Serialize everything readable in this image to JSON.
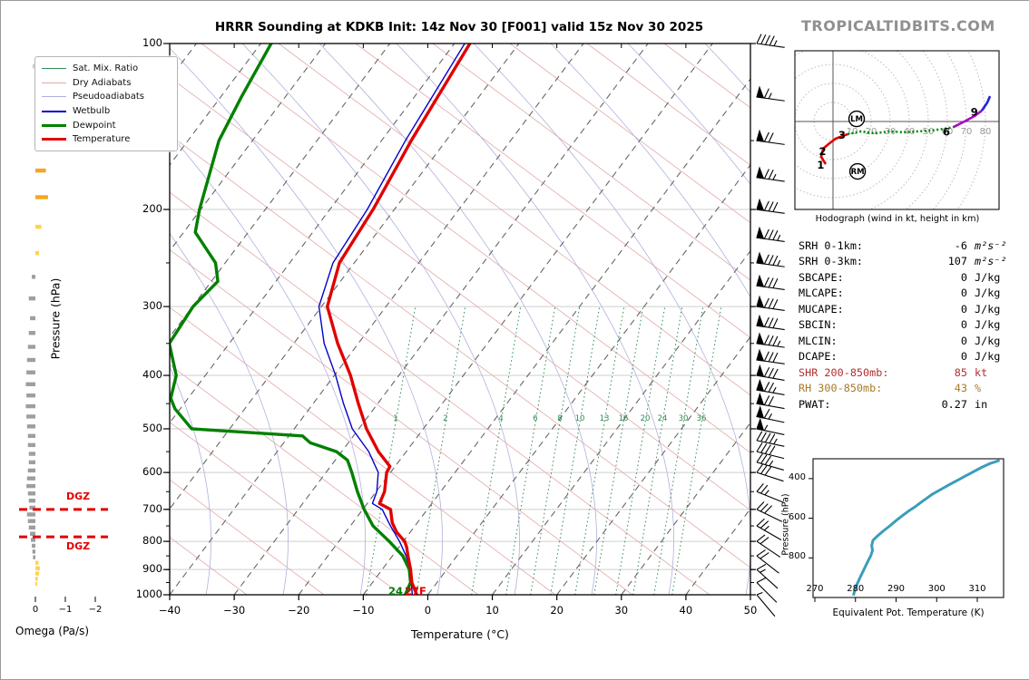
{
  "title": "HRRR Sounding at KDKB Init: 14z Nov 30 [F001] valid 15z Nov 30 2025",
  "brand": "TROPICALTIDBITS.COM",
  "legend": {
    "items": [
      {
        "label": "Sat. Mix. Ratio",
        "style": "mixratio"
      },
      {
        "label": "Dry Adiabats",
        "style": "dry"
      },
      {
        "label": "Pseudoadiabats",
        "style": "pseudo"
      },
      {
        "label": "Wetbulb",
        "style": "wetbulb"
      },
      {
        "label": "Dewpoint",
        "style": "dewpoint"
      },
      {
        "label": "Temperature",
        "style": "temperature"
      }
    ]
  },
  "indices": {
    "rows": [
      {
        "label": "SRH 0-1km:",
        "value": "-6",
        "unit": "m²s⁻²",
        "math": true,
        "color": "#000000"
      },
      {
        "label": "SRH 0-3km:",
        "value": "107",
        "unit": "m²s⁻²",
        "math": true,
        "color": "#000000"
      },
      {
        "label": "SBCAPE:",
        "value": "0",
        "unit": "J/kg",
        "math": false,
        "color": "#000000"
      },
      {
        "label": "MLCAPE:",
        "value": "0",
        "unit": "J/kg",
        "math": false,
        "color": "#000000"
      },
      {
        "label": "MUCAPE:",
        "value": "0",
        "unit": "J/kg",
        "math": false,
        "color": "#000000"
      },
      {
        "label": "SBCIN:",
        "value": "0",
        "unit": "J/kg",
        "math": false,
        "color": "#000000"
      },
      {
        "label": "MLCIN:",
        "value": "0",
        "unit": "J/kg",
        "math": false,
        "color": "#000000"
      },
      {
        "label": "DCAPE:",
        "value": "0",
        "unit": "J/kg",
        "math": false,
        "color": "#000000"
      },
      {
        "label": "SHR 200-850mb:",
        "value": "85",
        "unit": "kt",
        "math": false,
        "color": "#b03030"
      },
      {
        "label": "RH 300-850mb:",
        "value": "43",
        "unit": "%",
        "math": false,
        "color": "#a87a28"
      },
      {
        "label": "PWAT:",
        "value": "0.27",
        "unit": "in",
        "math": false,
        "color": "#000000"
      }
    ]
  },
  "chart_data": {
    "type": "skew-t log-p sounding",
    "skewt": {
      "xlabel": "Temperature (°C)",
      "ylabel": "Pressure (hPa)",
      "x_ticks": [
        -40,
        -30,
        -20,
        -10,
        0,
        10,
        20,
        30,
        40,
        50
      ],
      "xlim": [
        -40,
        50
      ],
      "p_ticks": [
        100,
        200,
        300,
        400,
        500,
        600,
        700,
        800,
        900,
        1000
      ],
      "plim": [
        100,
        1000
      ],
      "surface_temp_label": "27F",
      "surface_dewp_label": "24",
      "mixing_ratio_labels": [
        [
          1,
          435
        ],
        [
          2,
          490
        ],
        [
          4,
          551
        ],
        [
          6,
          589
        ],
        [
          8,
          616
        ],
        [
          10,
          638
        ],
        [
          13,
          665
        ],
        [
          16,
          686
        ],
        [
          20,
          710
        ],
        [
          24,
          729
        ],
        [
          30,
          752
        ],
        [
          36,
          772
        ]
      ],
      "dgz": {
        "label": "DGZ",
        "levels_hpa": [
          700,
          785
        ]
      },
      "temperature_c": [
        [
          1000,
          -1.7
        ],
        [
          950,
          -3.9
        ],
        [
          900,
          -5.6
        ],
        [
          850,
          -7.6
        ],
        [
          820,
          -8.8
        ],
        [
          800,
          -9.8
        ],
        [
          770,
          -12.1
        ],
        [
          740,
          -13.9
        ],
        [
          700,
          -15.7
        ],
        [
          683,
          -18.1
        ],
        [
          650,
          -18.7
        ],
        [
          600,
          -20.6
        ],
        [
          585,
          -20.8
        ],
        [
          550,
          -24.3
        ],
        [
          500,
          -28.8
        ],
        [
          450,
          -33.0
        ],
        [
          400,
          -37.5
        ],
        [
          350,
          -43.2
        ],
        [
          300,
          -49.1
        ],
        [
          250,
          -52.3
        ],
        [
          200,
          -53.3
        ],
        [
          150,
          -55.4
        ],
        [
          100,
          -57.6
        ]
      ],
      "dewpoint_c": [
        [
          1000,
          -3.5
        ],
        [
          950,
          -4.1
        ],
        [
          900,
          -5.8
        ],
        [
          850,
          -8.4
        ],
        [
          800,
          -12.2
        ],
        [
          750,
          -16.5
        ],
        [
          700,
          -19.8
        ],
        [
          650,
          -22.9
        ],
        [
          600,
          -26.0
        ],
        [
          570,
          -28.1
        ],
        [
          550,
          -30.8
        ],
        [
          530,
          -35.9
        ],
        [
          515,
          -37.9
        ],
        [
          500,
          -55.9
        ],
        [
          460,
          -60.8
        ],
        [
          440,
          -62.7
        ],
        [
          400,
          -64.5
        ],
        [
          350,
          -69.3
        ],
        [
          300,
          -69.9
        ],
        [
          270,
          -69.0
        ],
        [
          250,
          -71.5
        ],
        [
          220,
          -78.2
        ],
        [
          200,
          -80.2
        ],
        [
          150,
          -85.2
        ],
        [
          125,
          -86.8
        ],
        [
          100,
          -88.4
        ]
      ],
      "wetbulb_c": [
        [
          1000,
          -2.4
        ],
        [
          950,
          -4.0
        ],
        [
          900,
          -5.7
        ],
        [
          850,
          -7.9
        ],
        [
          800,
          -10.6
        ],
        [
          750,
          -13.8
        ],
        [
          700,
          -17.0
        ],
        [
          683,
          -19.2
        ],
        [
          650,
          -19.9
        ],
        [
          600,
          -21.9
        ],
        [
          550,
          -25.8
        ],
        [
          500,
          -31.0
        ],
        [
          450,
          -35.3
        ],
        [
          400,
          -39.8
        ],
        [
          350,
          -45.3
        ],
        [
          300,
          -50.4
        ],
        [
          250,
          -53.3
        ],
        [
          200,
          -54.2
        ],
        [
          150,
          -56.3
        ],
        [
          100,
          -58.4
        ]
      ]
    },
    "omega": {
      "label": "Omega (Pa/s)",
      "ticks": [
        0,
        -1,
        -2
      ],
      "profile": [
        [
          110,
          0.08
        ],
        [
          150,
          -0.18
        ],
        [
          170,
          -0.35
        ],
        [
          190,
          -0.42
        ],
        [
          215,
          -0.2
        ],
        [
          240,
          -0.12
        ],
        [
          265,
          0.12
        ],
        [
          290,
          0.22
        ],
        [
          315,
          0.18
        ],
        [
          335,
          0.22
        ],
        [
          355,
          0.25
        ],
        [
          375,
          0.28
        ],
        [
          395,
          0.3
        ],
        [
          415,
          0.32
        ],
        [
          435,
          0.3
        ],
        [
          455,
          0.32
        ],
        [
          475,
          0.3
        ],
        [
          495,
          0.28
        ],
        [
          515,
          0.25
        ],
        [
          535,
          0.25
        ],
        [
          555,
          0.22
        ],
        [
          575,
          0.22
        ],
        [
          595,
          0.25
        ],
        [
          615,
          0.28
        ],
        [
          635,
          0.3
        ],
        [
          655,
          0.25
        ],
        [
          675,
          0.22
        ],
        [
          695,
          0.2
        ],
        [
          715,
          0.28
        ],
        [
          735,
          0.25
        ],
        [
          755,
          0.22
        ],
        [
          775,
          0.18
        ],
        [
          795,
          0.15
        ],
        [
          815,
          0.12
        ],
        [
          835,
          0.1
        ],
        [
          855,
          0.08
        ],
        [
          875,
          -0.1
        ],
        [
          895,
          -0.15
        ],
        [
          915,
          -0.12
        ],
        [
          935,
          -0.08
        ],
        [
          955,
          -0.05
        ]
      ]
    },
    "wind_barbs_kt": [
      [
        100,
        0,
        4,
        1,
        8
      ],
      [
        125,
        1,
        1,
        1,
        8
      ],
      [
        150,
        1,
        2,
        0,
        8
      ],
      [
        175,
        1,
        2,
        1,
        8
      ],
      [
        200,
        1,
        3,
        0,
        8
      ],
      [
        225,
        1,
        3,
        1,
        8
      ],
      [
        250,
        1,
        3,
        1,
        8
      ],
      [
        275,
        1,
        3,
        0,
        8
      ],
      [
        300,
        1,
        3,
        0,
        8
      ],
      [
        325,
        1,
        3,
        0,
        8
      ],
      [
        350,
        1,
        3,
        1,
        8
      ],
      [
        375,
        1,
        3,
        0,
        8
      ],
      [
        400,
        1,
        3,
        0,
        10
      ],
      [
        425,
        1,
        2,
        1,
        10
      ],
      [
        450,
        1,
        2,
        0,
        10
      ],
      [
        475,
        1,
        1,
        1,
        12
      ],
      [
        500,
        1,
        0,
        1,
        12
      ],
      [
        525,
        0,
        4,
        1,
        12
      ],
      [
        550,
        0,
        4,
        0,
        14
      ],
      [
        575,
        0,
        3,
        1,
        16
      ],
      [
        600,
        0,
        3,
        0,
        18
      ],
      [
        650,
        0,
        2,
        1,
        22
      ],
      [
        700,
        0,
        3,
        0,
        26
      ],
      [
        750,
        0,
        2,
        1,
        30
      ],
      [
        800,
        0,
        2,
        0,
        34
      ],
      [
        850,
        0,
        2,
        0,
        38
      ],
      [
        900,
        0,
        1,
        1,
        42
      ],
      [
        950,
        0,
        1,
        0,
        45
      ],
      [
        1000,
        0,
        0,
        1,
        50
      ]
    ],
    "hodograph": {
      "caption": "Hodograph (wind in kt, height in km)",
      "ring_step_kt": 10,
      "ring_labels": [
        10,
        20,
        30,
        40,
        50,
        60,
        70,
        80
      ],
      "markers": [
        {
          "label": "LM",
          "u": 12.4,
          "v": 1.4
        },
        {
          "label": "RM",
          "u": 12.9,
          "v": -26.2
        }
      ],
      "height_labels": [
        {
          "t": "1",
          "u": -6.5,
          "v": -24.8
        },
        {
          "t": "2",
          "u": -5.5,
          "v": -17.6
        },
        {
          "t": "3",
          "u": 4.7,
          "v": -9.1
        },
        {
          "t": "6",
          "u": 59.5,
          "v": -7.4
        },
        {
          "t": "9",
          "u": 74.2,
          "v": 3.2
        }
      ],
      "trace": {
        "red": [
          [
            -3.8,
            -22.4
          ],
          [
            -6.2,
            -18.6
          ],
          [
            -5.2,
            -14.3
          ],
          [
            -2.4,
            -11.9
          ],
          [
            1.4,
            -9.0
          ],
          [
            7.6,
            -6.7
          ]
        ],
        "green": [
          [
            7.6,
            -6.7
          ],
          [
            14.8,
            -5.2
          ],
          [
            21.9,
            -6.2
          ],
          [
            30.0,
            -5.2
          ],
          [
            37.1,
            -5.7
          ],
          [
            44.3,
            -5.2
          ],
          [
            51.4,
            -4.8
          ],
          [
            58.6,
            -3.8
          ],
          [
            63.3,
            -2.9
          ]
        ],
        "purple": [
          [
            63.3,
            -2.9
          ],
          [
            69.0,
            0.0
          ],
          [
            74.3,
            2.9
          ],
          [
            78.1,
            5.7
          ]
        ],
        "blue": [
          [
            78.1,
            5.7
          ],
          [
            81.0,
            10.0
          ],
          [
            82.4,
            13.3
          ]
        ]
      }
    },
    "theta_e": {
      "caption": "Equivalent Pot. Temperature (K)",
      "ylabel": "Pressure (hPa)",
      "x_ticks": [
        270,
        280,
        290,
        300,
        310
      ],
      "p_ticks": [
        400,
        600,
        800
      ],
      "curve_k_hpa": [
        [
          279.5,
          990
        ],
        [
          280,
          950
        ],
        [
          281,
          905
        ],
        [
          282,
          862
        ],
        [
          283,
          820
        ],
        [
          283.8,
          788
        ],
        [
          284.2,
          762
        ],
        [
          284.0,
          738
        ],
        [
          284.3,
          712
        ],
        [
          285.5,
          688
        ],
        [
          287,
          662
        ],
        [
          288.5,
          638
        ],
        [
          290,
          612
        ],
        [
          291.5,
          588
        ],
        [
          293,
          565
        ],
        [
          294.5,
          545
        ],
        [
          296,
          522
        ],
        [
          297.5,
          500
        ],
        [
          299,
          478
        ],
        [
          301,
          455
        ],
        [
          303,
          432
        ],
        [
          305,
          410
        ],
        [
          307,
          388
        ],
        [
          309,
          366
        ],
        [
          311,
          344
        ],
        [
          313,
          325
        ],
        [
          315.5,
          308
        ]
      ]
    },
    "colors": {
      "temperature": "#e00000",
      "dewpoint": "#008000",
      "wetbulb": "#0000cc",
      "dry_adiabat": "#e2a9a9",
      "pseudoadiabat": "#b0b0dd",
      "mixing_ratio": "#2e8b57",
      "isotherm_dashed": "#666666",
      "gridline": "#cfcfcf",
      "dgz": "#e00000",
      "omega_pos": "#9e9e9e",
      "omega_neg": "#ffd34d",
      "omega_neg_strong": "#f5a623",
      "theta_e_curve": "#3b9dba",
      "hodo_ring": "#bbbbbb"
    }
  }
}
